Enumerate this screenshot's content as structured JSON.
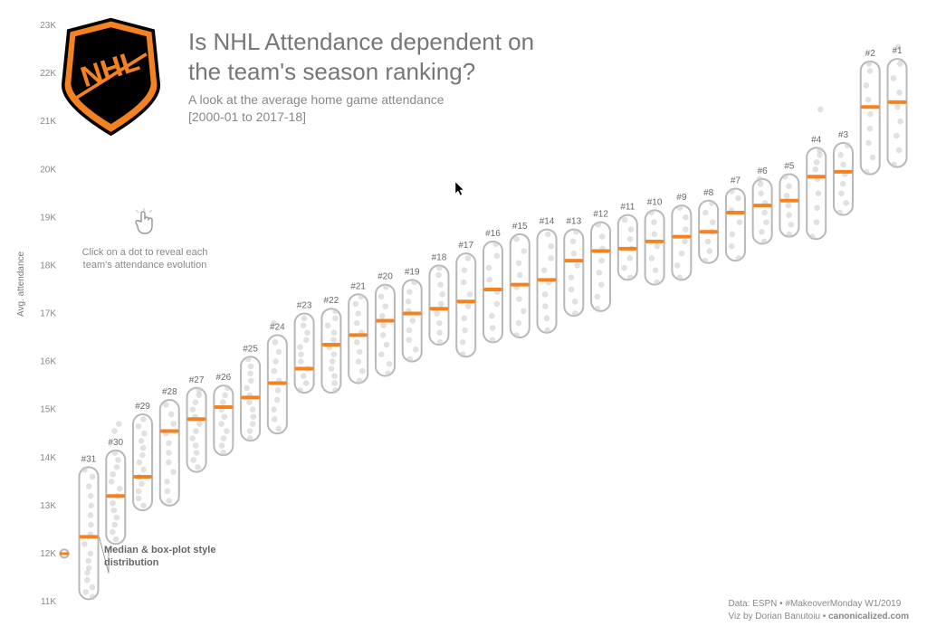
{
  "title_line1": "Is NHL Attendance dependent on",
  "title_line2": "the team's season ranking?",
  "subtitle_line1": "A look at the average home game attendance",
  "subtitle_line2": "[2000-01 to 2017-18]",
  "ylabel": "Avg. attendance",
  "hint_text": "Click on a dot to reveal each team's attendance evolution",
  "median_label": "Median & box-plot style distribution",
  "footer_line1": "Data: ESPN • #MakeoverMonday W1/2019",
  "footer_line2": "Viz by Dorian Banutoiu • canonicalized.com",
  "footer_bold": "canonicalized.com",
  "logo_text": "NHL",
  "chart": {
    "ylim": [
      11000,
      23000
    ],
    "yticks": [
      11000,
      12000,
      13000,
      14000,
      15000,
      16000,
      17000,
      18000,
      19000,
      20000,
      21000,
      22000,
      23000
    ],
    "ytick_labels": [
      "11K",
      "12K",
      "13K",
      "14K",
      "15K",
      "16K",
      "17K",
      "18K",
      "19K",
      "20K",
      "21K",
      "22K",
      "23K"
    ],
    "tick_fontsize": 10,
    "tick_color": "#888888",
    "background": "#ffffff",
    "rank_label_fontsize": 10,
    "rank_label_color": "#666666",
    "capsule_stroke": "#b8b8b8",
    "capsule_stroke_width": 2,
    "capsule_fill": "none",
    "capsule_width": 21,
    "capsule_radius": 10.5,
    "median_color": "#f58220",
    "median_stroke_width": 4,
    "dot_fill": "#c9c9c9",
    "dot_opacity": 0.55,
    "dot_radius": 3.3,
    "outlier_radius": 4.5,
    "outlier_stroke": "#b8b8b8",
    "leader_line_color": "#888888",
    "columns": [
      {
        "rank": "#31",
        "box_low": 11050,
        "box_high": 13800,
        "median": 12350,
        "dots": [
          11100,
          11200,
          11300,
          11450,
          11600,
          11700,
          11850,
          12000,
          12200,
          12400,
          12600,
          12800,
          13000,
          13200,
          13400,
          13600,
          13750
        ],
        "outliers": [
          12000
        ]
      },
      {
        "rank": "#30",
        "box_low": 12200,
        "box_high": 14150,
        "median": 13200,
        "dots": [
          12300,
          12450,
          12600,
          12750,
          12900,
          13050,
          13200,
          13350,
          13500,
          13650,
          13800,
          13950,
          14100,
          14550,
          14700
        ],
        "outliers": []
      },
      {
        "rank": "#29",
        "box_low": 12900,
        "box_high": 14900,
        "median": 13600,
        "dots": [
          13000,
          13150,
          13300,
          13450,
          13600,
          13750,
          13900,
          14050,
          14200,
          14350,
          14500,
          14650,
          14800
        ],
        "outliers": []
      },
      {
        "rank": "#28",
        "box_low": 13000,
        "box_high": 15200,
        "median": 14550,
        "dots": [
          13100,
          13300,
          13500,
          13700,
          13900,
          14100,
          14300,
          14500,
          14700,
          14900,
          15100
        ],
        "outliers": []
      },
      {
        "rank": "#27",
        "box_low": 13700,
        "box_high": 15450,
        "median": 14800,
        "dots": [
          13800,
          13950,
          14100,
          14250,
          14400,
          14550,
          14700,
          14850,
          15000,
          15150,
          15300,
          15400
        ],
        "outliers": []
      },
      {
        "rank": "#26",
        "box_low": 14050,
        "box_high": 15500,
        "median": 15050,
        "dots": [
          14100,
          14250,
          14400,
          14550,
          14700,
          14850,
          15000,
          15150,
          15300,
          15450
        ],
        "outliers": []
      },
      {
        "rank": "#25",
        "box_low": 14350,
        "box_high": 16100,
        "median": 15250,
        "dots": [
          14400,
          14550,
          14700,
          14850,
          15000,
          15150,
          15300,
          15450,
          15600,
          15750,
          15900,
          16050
        ],
        "outliers": []
      },
      {
        "rank": "#24",
        "box_low": 14500,
        "box_high": 16550,
        "median": 15550,
        "dots": [
          14600,
          14800,
          15000,
          15200,
          15400,
          15600,
          15800,
          16000,
          16200,
          16400,
          16800
        ],
        "outliers": []
      },
      {
        "rank": "#23",
        "box_low": 15350,
        "box_high": 17000,
        "median": 15850,
        "dots": [
          15400,
          15550,
          15700,
          15850,
          16000,
          16150,
          16300,
          16450,
          16600,
          16750,
          16900
        ],
        "outliers": []
      },
      {
        "rank": "#22",
        "box_low": 15350,
        "box_high": 17100,
        "median": 16350,
        "dots": [
          15400,
          15550,
          15700,
          15850,
          16000,
          16150,
          16300,
          16450,
          16600,
          16750,
          16900,
          17050
        ],
        "outliers": []
      },
      {
        "rank": "#21",
        "box_low": 15550,
        "box_high": 17400,
        "median": 16550,
        "dots": [
          15600,
          15800,
          16000,
          16200,
          16400,
          16600,
          16800,
          17000,
          17200,
          17350
        ],
        "outliers": []
      },
      {
        "rank": "#20",
        "box_low": 15700,
        "box_high": 17600,
        "median": 16850,
        "dots": [
          15750,
          15950,
          16150,
          16350,
          16550,
          16750,
          16950,
          17150,
          17350,
          17550
        ],
        "outliers": []
      },
      {
        "rank": "#19",
        "box_low": 16000,
        "box_high": 17700,
        "median": 17000,
        "dots": [
          16050,
          16250,
          16450,
          16650,
          16850,
          17050,
          17250,
          17450,
          17650
        ],
        "outliers": []
      },
      {
        "rank": "#18",
        "box_low": 16350,
        "box_high": 18000,
        "median": 17100,
        "dots": [
          16400,
          16600,
          16800,
          17000,
          17200,
          17400,
          17600,
          17800,
          17950
        ],
        "outliers": []
      },
      {
        "rank": "#17",
        "box_low": 16100,
        "box_high": 18250,
        "median": 17250,
        "dots": [
          16150,
          16400,
          16650,
          16900,
          17150,
          17400,
          17650,
          17900,
          18150
        ],
        "outliers": []
      },
      {
        "rank": "#16",
        "box_low": 16400,
        "box_high": 18500,
        "median": 17500,
        "dots": [
          16450,
          16700,
          16950,
          17200,
          17450,
          17700,
          17950,
          18200,
          18450
        ],
        "outliers": []
      },
      {
        "rank": "#15",
        "box_low": 16500,
        "box_high": 18650,
        "median": 17600,
        "dots": [
          16550,
          16800,
          17050,
          17300,
          17550,
          17800,
          18050,
          18300,
          18550
        ],
        "outliers": []
      },
      {
        "rank": "#14",
        "box_low": 16600,
        "box_high": 18750,
        "median": 17700,
        "dots": [
          16650,
          16900,
          17150,
          17400,
          17650,
          17900,
          18150,
          18400,
          18650
        ],
        "outliers": []
      },
      {
        "rank": "#13",
        "box_low": 16950,
        "box_high": 18750,
        "median": 18100,
        "dots": [
          17000,
          17250,
          17500,
          17750,
          18000,
          18250,
          18500,
          18700
        ],
        "outliers": []
      },
      {
        "rank": "#12",
        "box_low": 17050,
        "box_high": 18900,
        "median": 18300,
        "dots": [
          17100,
          17350,
          17600,
          17850,
          18100,
          18350,
          18600,
          18850
        ],
        "outliers": []
      },
      {
        "rank": "#11",
        "box_low": 17700,
        "box_high": 19050,
        "median": 18350,
        "dots": [
          17750,
          17950,
          18150,
          18350,
          18550,
          18750,
          18950
        ],
        "outliers": []
      },
      {
        "rank": "#10",
        "box_low": 17600,
        "box_high": 19150,
        "median": 18500,
        "dots": [
          17650,
          17900,
          18150,
          18400,
          18650,
          18900,
          19100
        ],
        "outliers": []
      },
      {
        "rank": "#9",
        "box_low": 17700,
        "box_high": 19250,
        "median": 18600,
        "dots": [
          17750,
          18000,
          18250,
          18500,
          18750,
          19000,
          19200
        ],
        "outliers": []
      },
      {
        "rank": "#8",
        "box_low": 18050,
        "box_high": 19350,
        "median": 18700,
        "dots": [
          18100,
          18300,
          18500,
          18700,
          18900,
          19100,
          19300
        ],
        "outliers": []
      },
      {
        "rank": "#7",
        "box_low": 18100,
        "box_high": 19600,
        "median": 19100,
        "dots": [
          18150,
          18400,
          18650,
          18900,
          19150,
          19400,
          19550
        ],
        "outliers": []
      },
      {
        "rank": "#6",
        "box_low": 18450,
        "box_high": 19800,
        "median": 19250,
        "dots": [
          18500,
          18700,
          18900,
          19100,
          19300,
          19500,
          19700,
          19800
        ],
        "outliers": []
      },
      {
        "rank": "#5",
        "box_low": 18600,
        "box_high": 19900,
        "median": 19350,
        "dots": [
          18650,
          18850,
          19050,
          19250,
          19450,
          19650,
          19850
        ],
        "outliers": []
      },
      {
        "rank": "#4",
        "box_low": 18550,
        "box_high": 20450,
        "median": 19850,
        "dots": [
          18600,
          18900,
          19200,
          19500,
          19800,
          20000,
          20150,
          20300,
          20400,
          21250
        ],
        "outliers": []
      },
      {
        "rank": "#3",
        "box_low": 19050,
        "box_high": 20550,
        "median": 19950,
        "dots": [
          19100,
          19300,
          19500,
          19700,
          19900,
          20100,
          20300,
          20500
        ],
        "outliers": []
      },
      {
        "rank": "#2",
        "box_low": 19900,
        "box_high": 22250,
        "median": 21300,
        "dots": [
          19950,
          20250,
          20550,
          20850,
          21150,
          21450,
          21750,
          22050,
          22200
        ],
        "outliers": []
      },
      {
        "rank": "#1",
        "box_low": 20050,
        "box_high": 22300,
        "median": 21400,
        "dots": [
          20100,
          20400,
          20700,
          21000,
          21300,
          21600,
          21900,
          22200,
          22550
        ],
        "outliers": []
      }
    ]
  }
}
